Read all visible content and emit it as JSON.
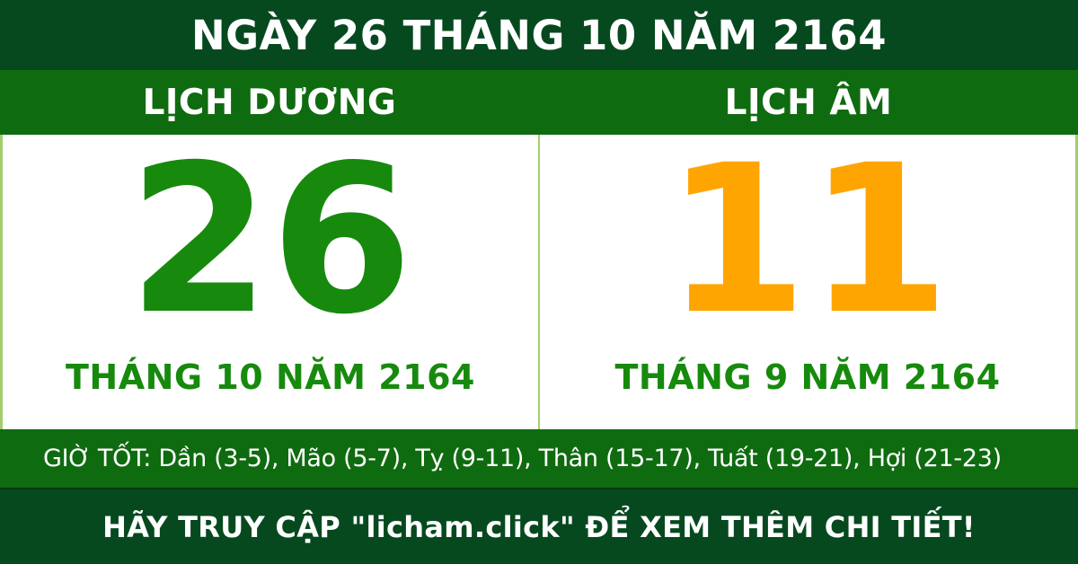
{
  "colors": {
    "dark_green": "#06491f",
    "band_green": "#0f6b10",
    "accent_green": "#178a0e",
    "accent_orange": "#ffa502",
    "divider_green": "#a3ce6b",
    "text_white": "#ffffff"
  },
  "header": {
    "title": "NGÀY 26 THÁNG 10 NĂM 2164"
  },
  "columns": {
    "solar": {
      "header": "LỊCH DƯƠNG",
      "day": "26",
      "month_year": "THÁNG 10 NĂM 2164"
    },
    "lunar": {
      "header": "LỊCH ÂM",
      "day": "11",
      "month_year": "THÁNG 9 NĂM 2164"
    }
  },
  "good_hours": {
    "text": "GIỜ TỐT: Dần (3-5), Mão (5-7), Tỵ (9-11), Thân (15-17), Tuất (19-21), Hợi (21-23)"
  },
  "footer": {
    "text": "HÃY TRUY CẬP \"licham.click\" ĐỂ XEM THÊM CHI TIẾT!"
  }
}
